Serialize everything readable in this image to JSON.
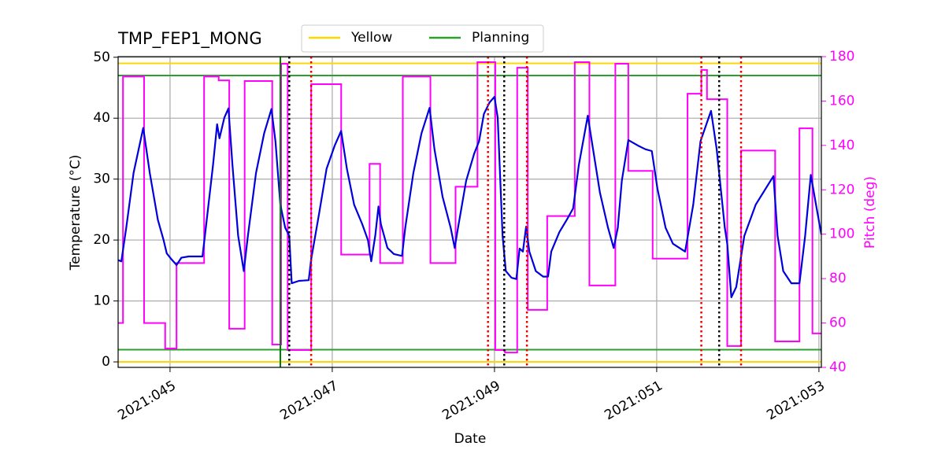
{
  "chart_data": {
    "type": "line",
    "title": "TMP_FEP1_MONG",
    "xlabel": "Date",
    "ylabel": "Temperature (°C)",
    "y2label": "Pitch (deg)",
    "xlim": [
      44.36,
      53.03
    ],
    "ylim": [
      -0.9,
      50.1
    ],
    "y2lim": [
      40,
      180
    ],
    "xticks": [
      {
        "value": 45,
        "label": "2021:045"
      },
      {
        "value": 47,
        "label": "2021:047"
      },
      {
        "value": 49,
        "label": "2021:049"
      },
      {
        "value": 51,
        "label": "2021:051"
      },
      {
        "value": 53,
        "label": "2021:053"
      }
    ],
    "yticks": [
      0,
      10,
      20,
      30,
      40,
      50
    ],
    "y2ticks": [
      40,
      60,
      80,
      100,
      120,
      140,
      160,
      180
    ],
    "grid": true,
    "legend": "upper center",
    "series": [
      {
        "color": "#0000dd",
        "x": [
          44.36,
          44.4,
          44.46,
          44.55,
          44.67,
          44.75,
          44.85,
          44.92,
          44.96,
          45.02,
          45.08,
          45.14,
          45.23,
          45.4,
          45.43,
          45.53,
          45.58,
          45.61,
          45.67,
          45.72,
          45.77,
          45.84,
          45.91,
          45.96,
          46.06,
          46.16,
          46.25,
          46.3,
          46.36,
          46.42,
          46.47,
          46.5,
          46.59,
          46.71,
          46.74,
          46.84,
          46.93,
          47.03,
          47.11,
          47.18,
          47.27,
          47.37,
          47.44,
          47.48,
          47.53,
          47.57,
          47.6,
          47.68,
          47.76,
          47.86,
          47.9,
          48.0,
          48.1,
          48.2,
          48.26,
          48.36,
          48.46,
          48.51,
          48.55,
          48.65,
          48.75,
          48.81,
          48.87,
          48.94,
          49.0,
          49.04,
          49.1,
          49.14,
          49.21,
          49.27,
          49.31,
          49.35,
          49.39,
          49.43,
          49.51,
          49.6,
          49.66,
          49.7,
          49.8,
          49.89,
          49.97,
          50.04,
          50.15,
          50.2,
          50.3,
          50.4,
          50.47,
          50.52,
          50.57,
          50.65,
          50.77,
          50.86,
          50.94,
          51.01,
          51.11,
          51.2,
          51.35,
          51.45,
          51.54,
          51.67,
          51.74,
          51.84,
          51.87,
          51.92,
          51.98,
          52.08,
          52.22,
          52.44,
          52.49,
          52.56,
          52.66,
          52.76,
          52.83,
          52.9,
          52.96,
          53.03
        ],
        "values": [
          16.7,
          16.5,
          22.0,
          31.0,
          38.4,
          31.0,
          23.3,
          20.0,
          17.8,
          16.8,
          15.9,
          17.1,
          17.3,
          17.3,
          20.7,
          32.3,
          39.0,
          36.7,
          40.1,
          41.6,
          32.3,
          20.7,
          14.9,
          20.7,
          31.0,
          37.5,
          41.5,
          36.2,
          25.8,
          22.0,
          20.7,
          12.9,
          13.3,
          13.4,
          16.8,
          24.5,
          31.7,
          35.5,
          37.9,
          31.7,
          25.8,
          22.6,
          20.0,
          16.5,
          20.7,
          25.5,
          22.6,
          18.7,
          17.7,
          17.4,
          22.0,
          31.0,
          37.5,
          41.7,
          34.9,
          27.1,
          22.0,
          18.7,
          22.0,
          29.7,
          34.2,
          36.2,
          40.7,
          42.6,
          43.5,
          40.1,
          20.7,
          14.9,
          13.8,
          13.6,
          18.6,
          18.1,
          22.2,
          18.1,
          14.9,
          14.0,
          14.0,
          18.1,
          21.3,
          23.3,
          25.2,
          32.3,
          40.4,
          36.2,
          27.8,
          22.0,
          18.7,
          22.0,
          29.7,
          36.4,
          35.5,
          34.9,
          34.6,
          28.4,
          22.0,
          19.4,
          18.1,
          25.8,
          36.2,
          41.2,
          34.9,
          22.0,
          19.4,
          10.6,
          12.3,
          20.7,
          25.8,
          30.5,
          20.7,
          14.9,
          12.9,
          12.9,
          20.7,
          30.7,
          26.1,
          20.9
        ]
      },
      {
        "color": "#ff00ff",
        "axis": "y2",
        "drawstyle": "steps-post",
        "x": [
          44.36,
          44.42,
          44.68,
          44.94,
          45.08,
          45.42,
          45.6,
          45.73,
          45.92,
          46.26,
          46.37,
          46.45,
          46.74,
          47.11,
          47.46,
          47.59,
          47.87,
          48.21,
          48.52,
          48.79,
          49.01,
          49.13,
          49.28,
          49.41,
          49.65,
          49.99,
          50.17,
          50.49,
          50.65,
          50.95,
          51.38,
          51.55,
          51.62,
          51.87,
          52.04,
          52.46,
          52.76,
          52.92,
          53.03
        ],
        "values": [
          60,
          171,
          60,
          48.5,
          87,
          171,
          169.3,
          57.4,
          169,
          50.3,
          176.8,
          47.8,
          167.6,
          90.8,
          131.7,
          87,
          171,
          87,
          121.4,
          177.5,
          47.8,
          46.7,
          175,
          65.9,
          108.2,
          177.5,
          76.9,
          176.8,
          128.5,
          89,
          163.3,
          174,
          160.8,
          49.6,
          137.7,
          51.7,
          147.7,
          55.3,
          55.3
        ]
      }
    ],
    "limit_lines": [
      {
        "name": "Yellow",
        "color": "#ffd700",
        "values": [
          49,
          0
        ]
      },
      {
        "name": "Planning",
        "color": "#2ca02c",
        "values": [
          47,
          2
        ]
      }
    ],
    "vlines": [
      {
        "color": "#008000",
        "style": "solid",
        "x": [
          46.36
        ]
      },
      {
        "color": "#000000",
        "style": "dotted",
        "x": [
          46.47,
          49.12,
          51.77
        ]
      },
      {
        "color": "#ee0000",
        "style": "dotted",
        "x": [
          46.74,
          48.92,
          49.4,
          51.55,
          52.04
        ]
      }
    ]
  }
}
